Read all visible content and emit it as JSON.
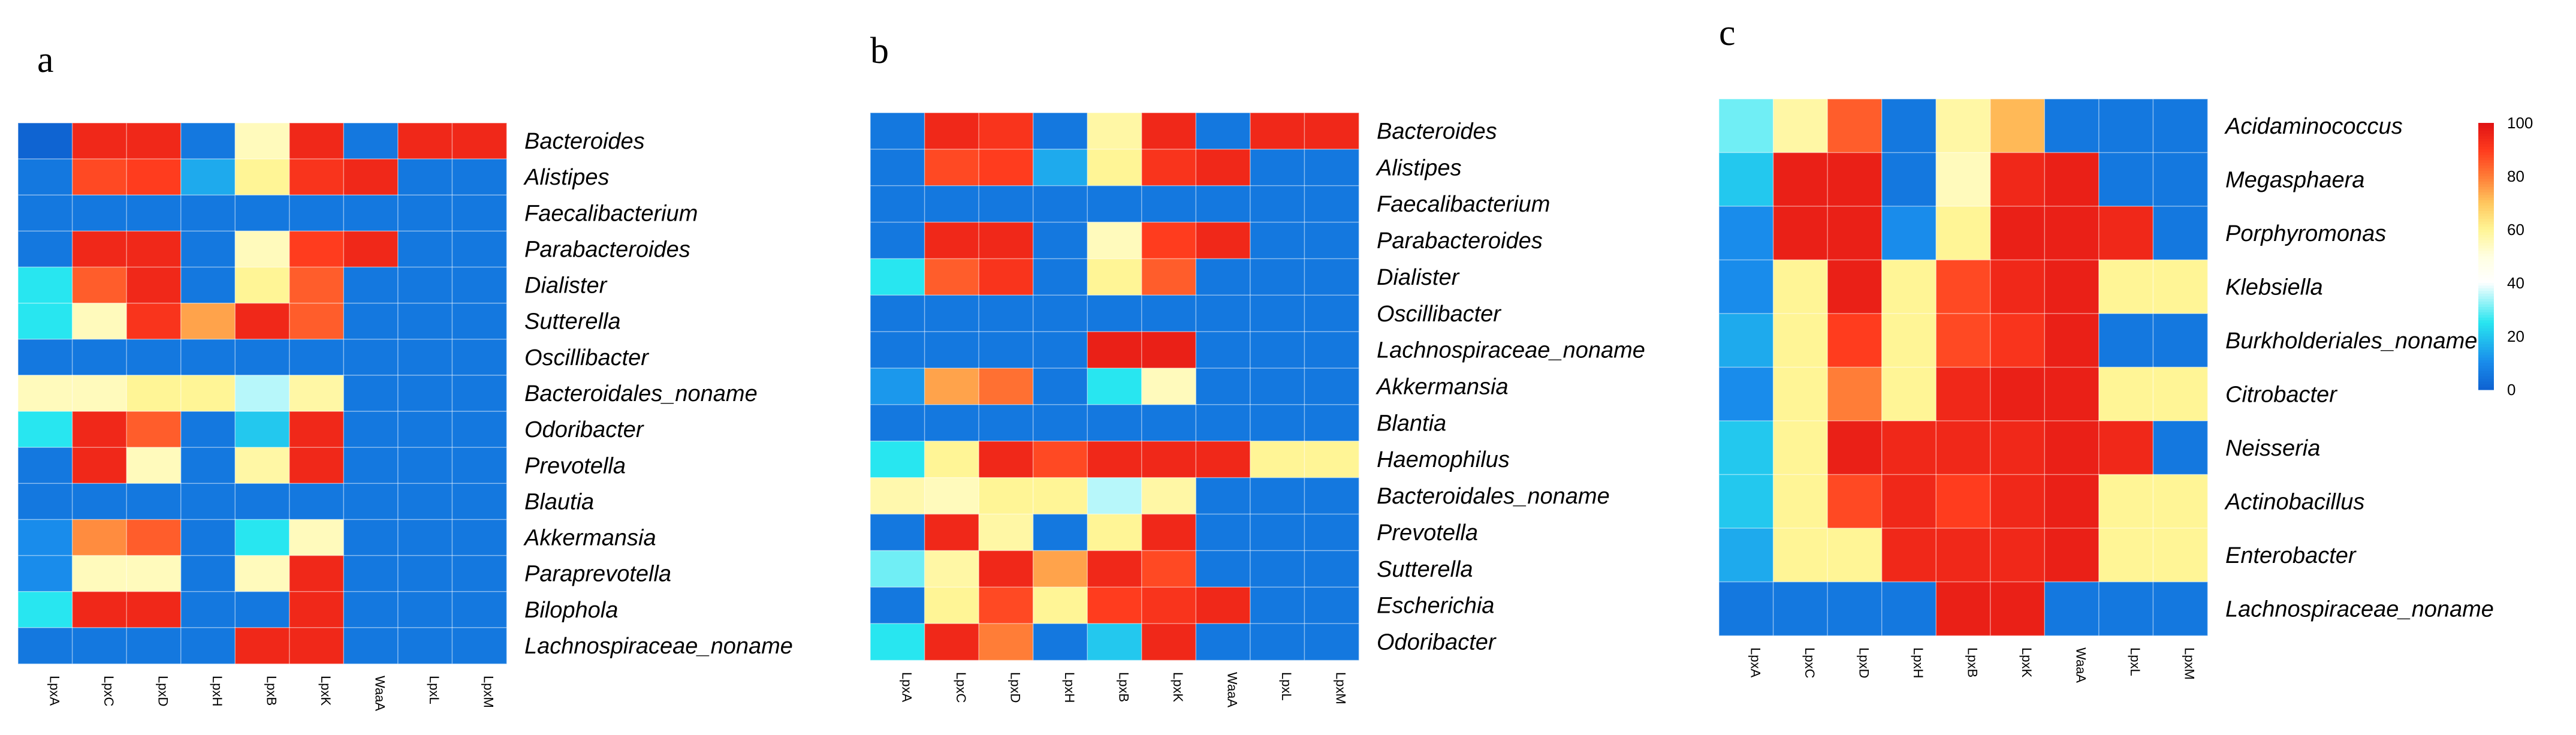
{
  "chart_data": [
    {
      "type": "heatmap",
      "panel": "a",
      "columns": [
        "LpxA",
        "LpxC",
        "LpxD",
        "LpxH",
        "LpxB",
        "LpxK",
        "WaaA",
        "LpxL",
        "LpxM"
      ],
      "rows": [
        {
          "label": "Bacteroides",
          "values": [
            0,
            95,
            95,
            5,
            55,
            95,
            5,
            95,
            95
          ]
        },
        {
          "label": "Alistipes",
          "values": [
            5,
            88,
            90,
            15,
            60,
            92,
            95,
            5,
            5
          ]
        },
        {
          "label": "Faecalibacterium",
          "values": [
            5,
            5,
            5,
            5,
            5,
            5,
            5,
            5,
            5
          ]
        },
        {
          "label": "Parabacteroides",
          "values": [
            5,
            95,
            95,
            5,
            55,
            90,
            95,
            5,
            5
          ]
        },
        {
          "label": "Dialister",
          "values": [
            25,
            85,
            95,
            5,
            60,
            85,
            5,
            5,
            5
          ]
        },
        {
          "label": "Sutterella",
          "values": [
            25,
            55,
            92,
            75,
            95,
            85,
            5,
            5,
            5
          ]
        },
        {
          "label": "Oscillibacter",
          "values": [
            5,
            5,
            5,
            5,
            5,
            5,
            5,
            5,
            5
          ]
        },
        {
          "label": "Bacteroidales_noname",
          "values": [
            55,
            55,
            60,
            60,
            35,
            58,
            5,
            5,
            5
          ]
        },
        {
          "label": "Odoribacter",
          "values": [
            25,
            95,
            85,
            5,
            20,
            95,
            5,
            5,
            5
          ]
        },
        {
          "label": "Prevotella",
          "values": [
            5,
            95,
            55,
            5,
            58,
            95,
            5,
            5,
            5
          ]
        },
        {
          "label": "Blautia",
          "values": [
            5,
            5,
            5,
            5,
            5,
            5,
            5,
            5,
            5
          ]
        },
        {
          "label": "Akkermansia",
          "values": [
            10,
            78,
            85,
            5,
            25,
            55,
            5,
            5,
            5
          ]
        },
        {
          "label": "Paraprevotella",
          "values": [
            10,
            55,
            55,
            5,
            55,
            95,
            5,
            5,
            5
          ]
        },
        {
          "label": "Bilophola",
          "values": [
            25,
            95,
            95,
            5,
            5,
            95,
            5,
            5,
            5
          ]
        },
        {
          "label": "Lachnospiraceae_noname",
          "values": [
            5,
            5,
            5,
            5,
            95,
            95,
            5,
            5,
            5
          ]
        }
      ]
    },
    {
      "type": "heatmap",
      "panel": "b",
      "columns": [
        "LpxA",
        "LpxC",
        "LpxD",
        "LpxH",
        "LpxB",
        "LpxK",
        "WaaA",
        "LpxL",
        "LpxM"
      ],
      "rows": [
        {
          "label": "Bacteroides",
          "values": [
            5,
            95,
            92,
            5,
            58,
            95,
            5,
            95,
            95
          ]
        },
        {
          "label": "Alistipes",
          "values": [
            5,
            88,
            90,
            15,
            60,
            92,
            95,
            5,
            5
          ]
        },
        {
          "label": "Faecalibacterium",
          "values": [
            5,
            5,
            5,
            5,
            5,
            5,
            5,
            5,
            5
          ]
        },
        {
          "label": "Parabacteroides",
          "values": [
            5,
            95,
            95,
            5,
            55,
            90,
            95,
            5,
            5
          ]
        },
        {
          "label": "Dialister",
          "values": [
            25,
            85,
            92,
            5,
            60,
            85,
            5,
            5,
            5
          ]
        },
        {
          "label": "Oscillibacter",
          "values": [
            5,
            5,
            5,
            5,
            5,
            5,
            5,
            5,
            5
          ]
        },
        {
          "label": "Lachnospiraceae_noname",
          "values": [
            5,
            5,
            5,
            5,
            97,
            97,
            5,
            5,
            5
          ]
        },
        {
          "label": "Akkermansia",
          "values": [
            12,
            75,
            82,
            5,
            25,
            55,
            5,
            5,
            5
          ]
        },
        {
          "label": "Blantia",
          "values": [
            5,
            5,
            5,
            5,
            5,
            5,
            5,
            5,
            5
          ]
        },
        {
          "label": "Haemophilus",
          "values": [
            25,
            60,
            95,
            88,
            95,
            95,
            95,
            60,
            60
          ]
        },
        {
          "label": "Bacteroidales_noname",
          "values": [
            57,
            55,
            60,
            60,
            35,
            58,
            5,
            5,
            5
          ]
        },
        {
          "label": "Prevotella",
          "values": [
            5,
            95,
            58,
            5,
            60,
            95,
            5,
            5,
            5
          ]
        },
        {
          "label": "Sutterella",
          "values": [
            30,
            58,
            95,
            75,
            95,
            88,
            5,
            5,
            5
          ]
        },
        {
          "label": "Escherichia",
          "values": [
            5,
            60,
            88,
            60,
            90,
            92,
            95,
            5,
            5
          ]
        },
        {
          "label": "Odoribacter",
          "values": [
            25,
            95,
            80,
            5,
            20,
            95,
            5,
            5,
            5
          ]
        }
      ]
    },
    {
      "type": "heatmap",
      "panel": "c",
      "columns": [
        "LpxA",
        "LpxC",
        "LpxD",
        "LpxH",
        "LpxB",
        "LpxK",
        "WaaA",
        "LpxL",
        "LpxM"
      ],
      "rows": [
        {
          "label": "Acidaminococcus",
          "values": [
            30,
            58,
            85,
            5,
            58,
            72,
            5,
            5,
            5
          ]
        },
        {
          "label": "Megasphaera",
          "values": [
            20,
            97,
            97,
            5,
            55,
            95,
            97,
            5,
            5
          ]
        },
        {
          "label": "Porphyromonas",
          "values": [
            10,
            97,
            97,
            10,
            60,
            97,
            97,
            95,
            5
          ]
        },
        {
          "label": "Klebsiella",
          "values": [
            10,
            60,
            97,
            60,
            88,
            95,
            97,
            60,
            60
          ]
        },
        {
          "label": "Burkholderiales_noname",
          "values": [
            15,
            60,
            90,
            60,
            88,
            92,
            97,
            5,
            5
          ]
        },
        {
          "label": "Citrobacter",
          "values": [
            10,
            60,
            80,
            60,
            95,
            97,
            97,
            60,
            60
          ]
        },
        {
          "label": "Neisseria",
          "values": [
            20,
            60,
            97,
            95,
            95,
            95,
            97,
            95,
            5
          ]
        },
        {
          "label": "Actinobacillus",
          "values": [
            20,
            60,
            88,
            95,
            90,
            95,
            97,
            60,
            60
          ]
        },
        {
          "label": "Enterobacter",
          "values": [
            15,
            60,
            60,
            95,
            95,
            95,
            97,
            60,
            60
          ]
        },
        {
          "label": "Lachnospiraceae_noname",
          "values": [
            5,
            5,
            5,
            5,
            97,
            97,
            5,
            5,
            5
          ]
        }
      ],
      "colorbar": {
        "ticks": [
          100,
          80,
          60,
          40,
          20,
          0
        ],
        "colors": [
          "#0f64d2",
          "#1ab8ee",
          "#2eeeee",
          "#ffffff",
          "#ffffdc",
          "#fff28c",
          "#ffbe5a",
          "#ff7832",
          "#ff3c1e",
          "#e61414"
        ]
      }
    }
  ]
}
